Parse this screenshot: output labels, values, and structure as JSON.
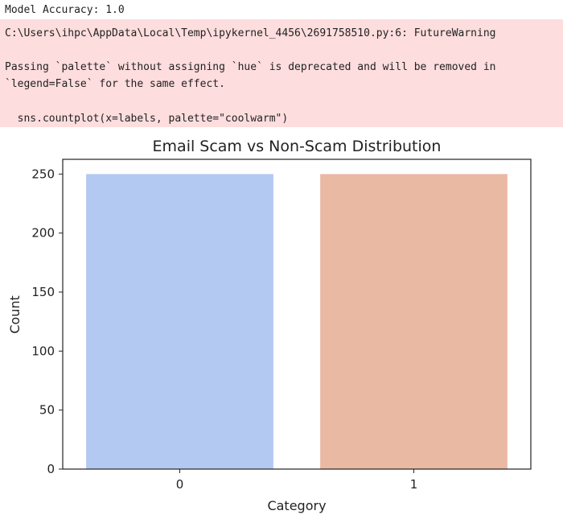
{
  "stdout": {
    "text": "Model Accuracy: 1.0"
  },
  "warning": {
    "lines": [
      "C:\\Users\\ihpc\\AppData\\Local\\Temp\\ipykernel_4456\\2691758510.py:6: FutureWarning",
      "",
      "Passing `palette` without assigning `hue` is deprecated and will be removed in",
      "`legend=False` for the same effect.",
      "",
      "  sns.countplot(x=labels, palette=\"coolwarm\")"
    ]
  },
  "colors": {
    "warning_background": "#fddddd",
    "bar_0": "#b3c9f2",
    "bar_1": "#eab9a3"
  },
  "chart_data": {
    "type": "bar",
    "title": "Email Scam vs Non-Scam Distribution",
    "xlabel": "Category",
    "ylabel": "Count",
    "categories": [
      "0",
      "1"
    ],
    "values": [
      250,
      250
    ],
    "ylim": [
      0,
      262.5
    ],
    "yticks": [
      0,
      50,
      100,
      150,
      200,
      250
    ],
    "grid": false,
    "legend": false
  }
}
